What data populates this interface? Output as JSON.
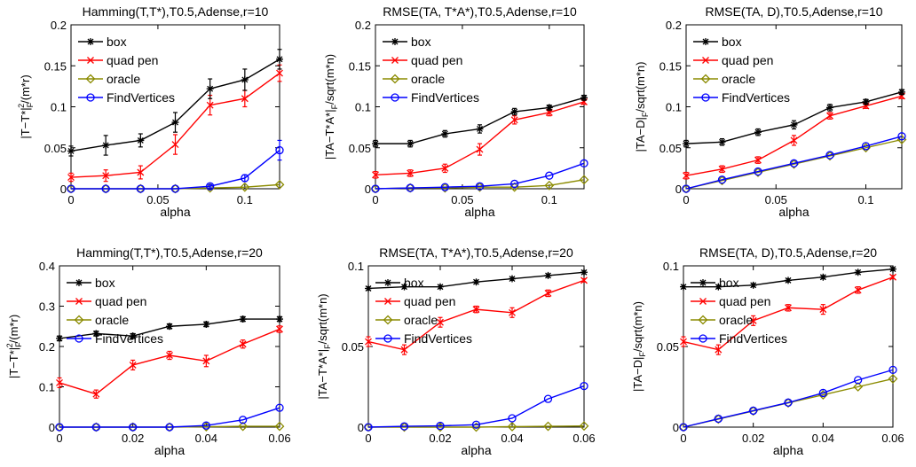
{
  "chart_data": [
    {
      "type": "line",
      "title": "Hamming(T,T*),T0.5,Adense,r=10",
      "xlabel": "alpha",
      "ylabel_parts": [
        "|T−T*|",
        "F",
        "2",
        "/(m*r)"
      ],
      "x": [
        0,
        0.02,
        0.04,
        0.06,
        0.08,
        0.1,
        0.12
      ],
      "xlim": [
        0,
        0.12
      ],
      "ylim": [
        0,
        0.2
      ],
      "xticks": [
        0,
        0.05,
        0.1
      ],
      "xtick_labels": [
        "0",
        "0.05",
        "0.1"
      ],
      "yticks": [
        0,
        0.05,
        0.1,
        0.15,
        0.2
      ],
      "ytick_labels": [
        "0",
        "0.05",
        "0.1",
        "0.15",
        "0.2"
      ],
      "legend_position": "top-left",
      "series": [
        {
          "name": "box",
          "color": "#000000",
          "marker": "star",
          "values": [
            0.046,
            0.053,
            0.059,
            0.081,
            0.122,
            0.133,
            0.158
          ],
          "errors": [
            0.006,
            0.012,
            0.008,
            0.012,
            0.012,
            0.013,
            0.012
          ]
        },
        {
          "name": "quad pen",
          "color": "#ff0000",
          "marker": "x",
          "values": [
            0.014,
            0.016,
            0.02,
            0.054,
            0.102,
            0.11,
            0.141
          ],
          "errors": [
            0.005,
            0.007,
            0.008,
            0.012,
            0.012,
            0.01,
            0.01
          ]
        },
        {
          "name": "oracle",
          "color": "#8b8b00",
          "marker": "diamond",
          "values": [
            0,
            0,
            0,
            0,
            0.001,
            0.002,
            0.005
          ],
          "errors": [
            0,
            0,
            0,
            0,
            0,
            0,
            0
          ]
        },
        {
          "name": "FindVertices",
          "color": "#0000ff",
          "marker": "circle",
          "values": [
            0,
            0,
            0,
            0,
            0.003,
            0.013,
            0.047
          ],
          "errors": [
            0,
            0,
            0,
            0,
            0.002,
            0.004,
            0.012
          ]
        }
      ]
    },
    {
      "type": "line",
      "title": "RMSE(TA, T*A*),T0.5,Adense,r=10",
      "xlabel": "alpha",
      "ylabel_parts": [
        "|TA−T*A*|",
        "F",
        "",
        "/sqrt(m*n)"
      ],
      "x": [
        0,
        0.02,
        0.04,
        0.06,
        0.08,
        0.1,
        0.12
      ],
      "xlim": [
        0,
        0.12
      ],
      "ylim": [
        0,
        0.2
      ],
      "xticks": [
        0,
        0.05,
        0.1
      ],
      "xtick_labels": [
        "0",
        "0.05",
        "0.1"
      ],
      "yticks": [
        0,
        0.05,
        0.1,
        0.15,
        0.2
      ],
      "ytick_labels": [
        "0",
        "0.05",
        "0.1",
        "0.15",
        "0.2"
      ],
      "legend_position": "top-left",
      "series": [
        {
          "name": "box",
          "color": "#000000",
          "marker": "star",
          "values": [
            0.055,
            0.055,
            0.067,
            0.073,
            0.094,
            0.099,
            0.111
          ],
          "errors": [
            0.004,
            0.004,
            0.004,
            0.005,
            0.004,
            0.003,
            0.003
          ]
        },
        {
          "name": "quad pen",
          "color": "#ff0000",
          "marker": "x",
          "values": [
            0.017,
            0.019,
            0.025,
            0.048,
            0.084,
            0.093,
            0.106
          ],
          "errors": [
            0.004,
            0.004,
            0.005,
            0.007,
            0.005,
            0.004,
            0.003
          ]
        },
        {
          "name": "oracle",
          "color": "#8b8b00",
          "marker": "diamond",
          "values": [
            0,
            0.001,
            0.001,
            0.002,
            0.002,
            0.004,
            0.011
          ],
          "errors": [
            0,
            0,
            0,
            0,
            0,
            0,
            0
          ]
        },
        {
          "name": "FindVertices",
          "color": "#0000ff",
          "marker": "circle",
          "values": [
            0,
            0.001,
            0.002,
            0.003,
            0.006,
            0.016,
            0.031
          ],
          "errors": [
            0,
            0,
            0,
            0,
            0,
            0,
            0
          ]
        }
      ]
    },
    {
      "type": "line",
      "title": "RMSE(TA, D),T0.5,Adense,r=10",
      "xlabel": "alpha",
      "ylabel_parts": [
        "|TA−D|",
        "F",
        "",
        "/sqrt(m*n)"
      ],
      "x": [
        0,
        0.02,
        0.04,
        0.06,
        0.08,
        0.1,
        0.12
      ],
      "xlim": [
        0,
        0.12
      ],
      "ylim": [
        0,
        0.2
      ],
      "xticks": [
        0,
        0.05,
        0.1
      ],
      "xtick_labels": [
        "0",
        "0.05",
        "0.1"
      ],
      "yticks": [
        0,
        0.05,
        0.1,
        0.15,
        0.2
      ],
      "ytick_labels": [
        "0",
        "0.05",
        "0.1",
        "0.15",
        "0.2"
      ],
      "legend_position": "top-left",
      "series": [
        {
          "name": "box",
          "color": "#000000",
          "marker": "star",
          "values": [
            0.055,
            0.057,
            0.069,
            0.078,
            0.099,
            0.106,
            0.118
          ],
          "errors": [
            0.004,
            0.004,
            0.004,
            0.005,
            0.004,
            0.003,
            0.003
          ]
        },
        {
          "name": "quad pen",
          "color": "#ff0000",
          "marker": "x",
          "values": [
            0.016,
            0.024,
            0.035,
            0.059,
            0.089,
            0.101,
            0.113
          ],
          "errors": [
            0.004,
            0.004,
            0.004,
            0.006,
            0.004,
            0.003,
            0.003
          ]
        },
        {
          "name": "oracle",
          "color": "#8b8b00",
          "marker": "diamond",
          "values": [
            0,
            0.01,
            0.02,
            0.03,
            0.04,
            0.05,
            0.06
          ],
          "errors": [
            0,
            0,
            0,
            0,
            0,
            0,
            0
          ]
        },
        {
          "name": "FindVertices",
          "color": "#0000ff",
          "marker": "circle",
          "values": [
            0,
            0.011,
            0.021,
            0.031,
            0.041,
            0.052,
            0.064
          ],
          "errors": [
            0,
            0,
            0,
            0,
            0,
            0,
            0
          ]
        }
      ]
    },
    {
      "type": "line",
      "title": "Hamming(T,T*),T0.5,Adense,r=20",
      "xlabel": "alpha",
      "ylabel_parts": [
        "|T−T*|",
        "F",
        "2",
        "/(m*r)"
      ],
      "x": [
        0,
        0.01,
        0.02,
        0.03,
        0.04,
        0.05,
        0.06
      ],
      "xlim": [
        0,
        0.06
      ],
      "ylim": [
        0,
        0.4
      ],
      "xticks": [
        0,
        0.02,
        0.04,
        0.06
      ],
      "xtick_labels": [
        "0",
        "0.02",
        "0.04",
        "0.06"
      ],
      "yticks": [
        0,
        0.1,
        0.2,
        0.3,
        0.4
      ],
      "ytick_labels": [
        "0",
        "0.1",
        "0.2",
        "0.3",
        "0.4"
      ],
      "legend_position": "top-left",
      "series": [
        {
          "name": "box",
          "color": "#000000",
          "marker": "star",
          "values": [
            0.22,
            0.232,
            0.226,
            0.25,
            0.255,
            0.268,
            0.268
          ],
          "errors": [
            0.006,
            0.006,
            0.006,
            0.006,
            0.006,
            0.006,
            0.006
          ]
        },
        {
          "name": "quad pen",
          "color": "#ff0000",
          "marker": "x",
          "values": [
            0.11,
            0.082,
            0.154,
            0.178,
            0.164,
            0.206,
            0.243
          ],
          "errors": [
            0.012,
            0.01,
            0.012,
            0.01,
            0.014,
            0.01,
            0.008
          ]
        },
        {
          "name": "oracle",
          "color": "#8b8b00",
          "marker": "diamond",
          "values": [
            0,
            0,
            0,
            0,
            0.001,
            0.002,
            0.002
          ],
          "errors": [
            0,
            0,
            0,
            0,
            0,
            0,
            0
          ]
        },
        {
          "name": "FindVertices",
          "color": "#0000ff",
          "marker": "circle",
          "values": [
            0,
            0,
            0,
            0,
            0.004,
            0.018,
            0.048
          ],
          "errors": [
            0,
            0,
            0,
            0,
            0,
            0,
            0
          ]
        }
      ]
    },
    {
      "type": "line",
      "title": "RMSE(TA, T*A*),T0.5,Adense,r=20",
      "xlabel": "alpha",
      "ylabel_parts": [
        "|TA−T*A*|",
        "F",
        "",
        "/sqrt(m*n)"
      ],
      "x": [
        0,
        0.01,
        0.02,
        0.03,
        0.04,
        0.05,
        0.06
      ],
      "xlim": [
        0,
        0.06
      ],
      "ylim": [
        0,
        0.1
      ],
      "xticks": [
        0,
        0.02,
        0.04,
        0.06
      ],
      "xtick_labels": [
        "0",
        "0.02",
        "0.04",
        "0.06"
      ],
      "yticks": [
        0,
        0.05,
        0.1
      ],
      "ytick_labels": [
        "0",
        "0.05",
        "0.1"
      ],
      "legend_position": "top-left",
      "series": [
        {
          "name": "box",
          "color": "#000000",
          "marker": "star",
          "values": [
            0.086,
            0.087,
            0.087,
            0.09,
            0.092,
            0.094,
            0.096
          ],
          "errors": [
            0.001,
            0.001,
            0.001,
            0.001,
            0.001,
            0.001,
            0.001
          ]
        },
        {
          "name": "quad pen",
          "color": "#ff0000",
          "marker": "x",
          "values": [
            0.053,
            0.048,
            0.065,
            0.073,
            0.071,
            0.083,
            0.091
          ],
          "errors": [
            0.003,
            0.003,
            0.003,
            0.002,
            0.003,
            0.002,
            0.001
          ]
        },
        {
          "name": "oracle",
          "color": "#8b8b00",
          "marker": "diamond",
          "values": [
            0,
            0,
            0,
            0,
            0.0003,
            0.0005,
            0.0007
          ],
          "errors": [
            0,
            0,
            0,
            0,
            0,
            0,
            0
          ]
        },
        {
          "name": "FindVertices",
          "color": "#0000ff",
          "marker": "circle",
          "values": [
            0,
            0.0005,
            0.0008,
            0.0015,
            0.0055,
            0.0175,
            0.0255
          ],
          "errors": [
            0,
            0,
            0,
            0,
            0,
            0,
            0
          ]
        }
      ]
    },
    {
      "type": "line",
      "title": "RMSE(TA, D),T0.5,Adense,r=20",
      "xlabel": "alpha",
      "ylabel_parts": [
        "|TA−D|",
        "F",
        "",
        "/sqrt(m*n)"
      ],
      "x": [
        0,
        0.01,
        0.02,
        0.03,
        0.04,
        0.05,
        0.06
      ],
      "xlim": [
        0,
        0.06
      ],
      "ylim": [
        0,
        0.1
      ],
      "xticks": [
        0,
        0.02,
        0.04,
        0.06
      ],
      "xtick_labels": [
        "0",
        "0.02",
        "0.04",
        "0.06"
      ],
      "yticks": [
        0,
        0.05,
        0.1
      ],
      "ytick_labels": [
        "0",
        "0.05",
        "0.1"
      ],
      "legend_position": "top-left",
      "series": [
        {
          "name": "box",
          "color": "#000000",
          "marker": "star",
          "values": [
            0.087,
            0.087,
            0.088,
            0.091,
            0.093,
            0.096,
            0.098
          ],
          "errors": [
            0.001,
            0.001,
            0.001,
            0.001,
            0.001,
            0.001,
            0.001
          ]
        },
        {
          "name": "quad pen",
          "color": "#ff0000",
          "marker": "x",
          "values": [
            0.053,
            0.048,
            0.066,
            0.074,
            0.073,
            0.085,
            0.093
          ],
          "errors": [
            0.003,
            0.003,
            0.003,
            0.002,
            0.003,
            0.002,
            0.001
          ]
        },
        {
          "name": "oracle",
          "color": "#8b8b00",
          "marker": "diamond",
          "values": [
            0,
            0.005,
            0.01,
            0.015,
            0.02,
            0.025,
            0.03
          ],
          "errors": [
            0,
            0,
            0,
            0,
            0,
            0,
            0
          ]
        },
        {
          "name": "FindVertices",
          "color": "#0000ff",
          "marker": "circle",
          "values": [
            0,
            0.0052,
            0.0102,
            0.0152,
            0.0212,
            0.0292,
            0.0355
          ],
          "errors": [
            0,
            0,
            0,
            0,
            0,
            0,
            0
          ]
        }
      ]
    }
  ]
}
